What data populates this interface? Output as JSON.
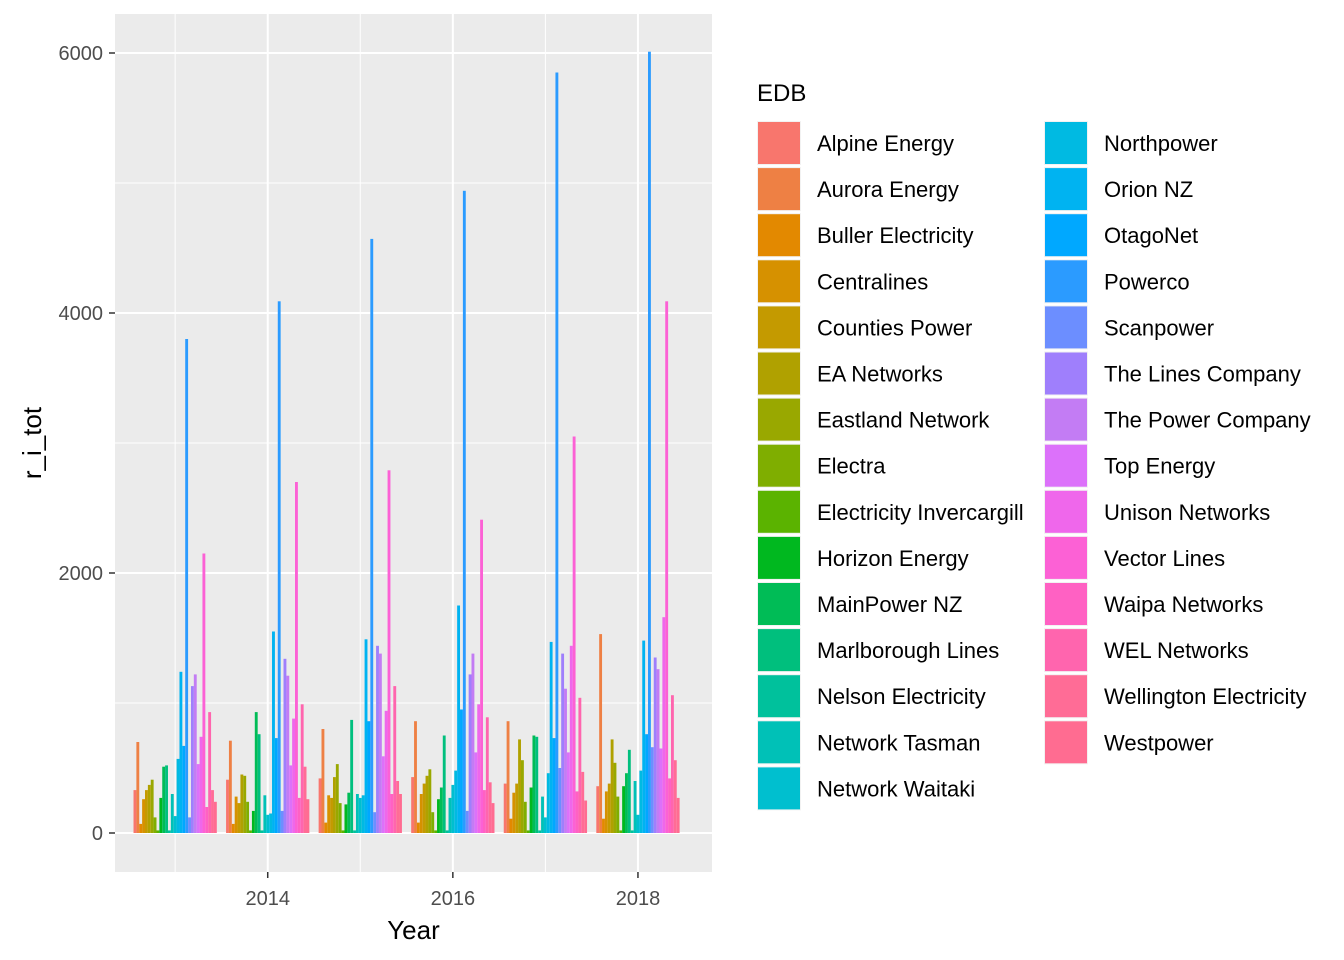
{
  "chart_data": {
    "type": "bar",
    "xlabel": "Year",
    "ylabel": "r_i_tot",
    "x_tick_labels": [
      "2014",
      "2016",
      "2018"
    ],
    "x_ticks": [
      2014,
      2016,
      2018
    ],
    "y_tick_labels": [
      "0",
      "2000",
      "4000",
      "6000"
    ],
    "y_ticks": [
      0,
      2000,
      4000,
      6000
    ],
    "xlim": [
      2012.35,
      2018.8
    ],
    "ylim": [
      -300,
      6300
    ],
    "grid": true,
    "legend_title": "EDB",
    "legend_position": "right",
    "categories": [
      2013,
      2014,
      2015,
      2016,
      2017,
      2018
    ],
    "series": [
      {
        "name": "Alpine Energy",
        "color": "#F8766D",
        "values": [
          330,
          410,
          420,
          430,
          380,
          360
        ]
      },
      {
        "name": "Aurora Energy",
        "color": "#EE8044",
        "values": [
          700,
          710,
          800,
          860,
          860,
          1530
        ]
      },
      {
        "name": "Buller Electricity",
        "color": "#E38900",
        "values": [
          70,
          70,
          80,
          80,
          110,
          110
        ]
      },
      {
        "name": "Centralines",
        "color": "#D69100",
        "values": [
          260,
          280,
          290,
          300,
          310,
          320
        ]
      },
      {
        "name": "Counties Power",
        "color": "#C49A00",
        "values": [
          330,
          230,
          270,
          380,
          380,
          380
        ]
      },
      {
        "name": "EA Networks",
        "color": "#B0A100",
        "values": [
          370,
          450,
          430,
          440,
          720,
          720
        ]
      },
      {
        "name": "Eastland Network",
        "color": "#99A800",
        "values": [
          410,
          440,
          530,
          490,
          560,
          540
        ]
      },
      {
        "name": "Electra",
        "color": "#7FAE00",
        "values": [
          120,
          240,
          230,
          160,
          240,
          280
        ]
      },
      {
        "name": "Electricity Invercargill",
        "color": "#5BB300",
        "values": [
          20,
          20,
          20,
          20,
          20,
          20
        ]
      },
      {
        "name": "Horizon Energy",
        "color": "#00B81F",
        "values": [
          270,
          170,
          220,
          260,
          350,
          360
        ]
      },
      {
        "name": "MainPower NZ",
        "color": "#00BC56",
        "values": [
          510,
          930,
          310,
          350,
          750,
          460
        ]
      },
      {
        "name": "Marlborough Lines",
        "color": "#00BF7D",
        "values": [
          520,
          760,
          870,
          750,
          740,
          640
        ]
      },
      {
        "name": "Nelson Electricity",
        "color": "#00C19C",
        "values": [
          20,
          20,
          20,
          20,
          20,
          20
        ]
      },
      {
        "name": "Network Tasman",
        "color": "#00C1B7",
        "values": [
          300,
          290,
          300,
          270,
          280,
          400
        ]
      },
      {
        "name": "Network Waitaki",
        "color": "#00BFCF",
        "values": [
          130,
          140,
          270,
          370,
          120,
          140
        ]
      },
      {
        "name": "Northpower",
        "color": "#00BAE2",
        "values": [
          570,
          150,
          290,
          480,
          460,
          480
        ]
      },
      {
        "name": "Orion NZ",
        "color": "#00B3F1",
        "values": [
          1240,
          1550,
          1490,
          1750,
          1470,
          1480
        ]
      },
      {
        "name": "OtagoNet",
        "color": "#00A8FF",
        "values": [
          670,
          730,
          860,
          950,
          730,
          760
        ]
      },
      {
        "name": "Powerco",
        "color": "#2B9BFF",
        "values": [
          3800,
          4090,
          4570,
          4940,
          5850,
          6010
        ]
      },
      {
        "name": "Scanpower",
        "color": "#6C8EFF",
        "values": [
          120,
          170,
          160,
          170,
          500,
          660
        ]
      },
      {
        "name": "The Lines Company",
        "color": "#9F7FFC",
        "values": [
          1130,
          1340,
          1440,
          1220,
          1380,
          1350
        ]
      },
      {
        "name": "The Power Company",
        "color": "#C37CF4",
        "values": [
          1220,
          1210,
          1380,
          1380,
          1110,
          1260
        ]
      },
      {
        "name": "Top Energy",
        "color": "#DC71FA",
        "values": [
          530,
          520,
          590,
          620,
          620,
          650
        ]
      },
      {
        "name": "Unison Networks",
        "color": "#EF67EB",
        "values": [
          740,
          880,
          940,
          990,
          1440,
          1660
        ]
      },
      {
        "name": "Vector Lines",
        "color": "#FC61D5",
        "values": [
          2150,
          2700,
          2790,
          2410,
          3050,
          4090
        ]
      },
      {
        "name": "Waipa Networks",
        "color": "#FF61C3",
        "values": [
          200,
          270,
          300,
          330,
          320,
          420
        ]
      },
      {
        "name": "WEL Networks",
        "color": "#FF65AE",
        "values": [
          930,
          990,
          1130,
          890,
          1040,
          1060
        ]
      },
      {
        "name": "Wellington Electricity",
        "color": "#FF6C96",
        "values": [
          330,
          510,
          400,
          390,
          470,
          560
        ]
      },
      {
        "name": "Westpower",
        "color": "#FF6C91",
        "values": [
          240,
          260,
          300,
          230,
          250,
          270
        ]
      }
    ]
  }
}
